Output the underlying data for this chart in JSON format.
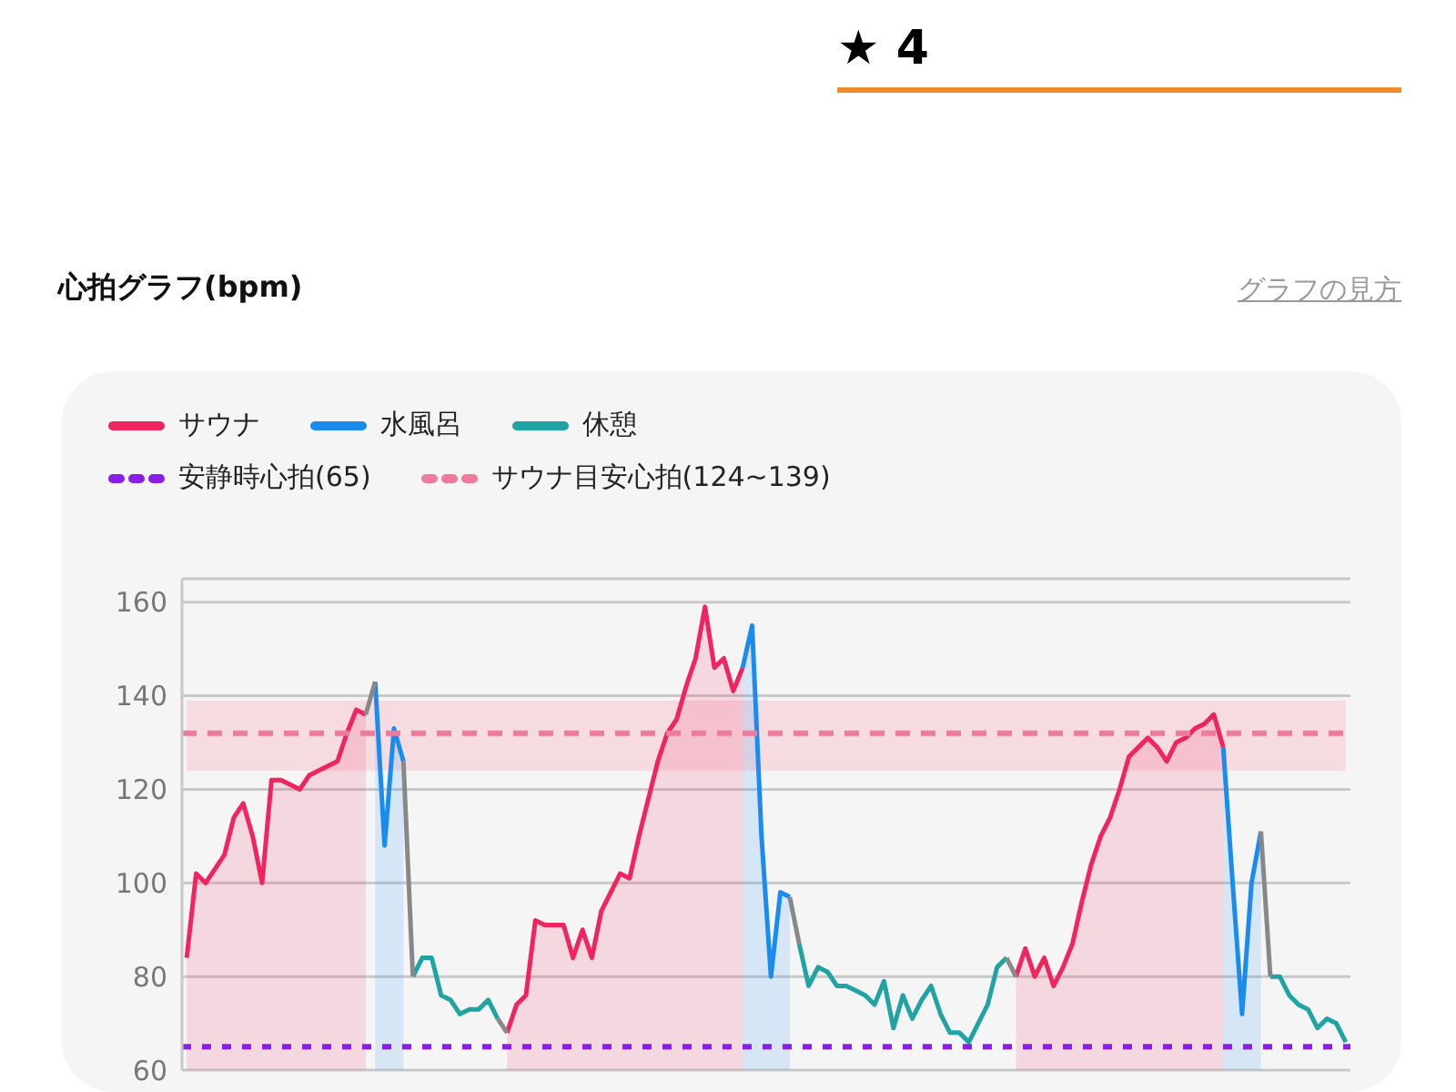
{
  "chart_data": {
    "type": "line",
    "title": "心拍グラフ(bpm)",
    "annotations": [
      "★ 4",
      "グラフの見方"
    ],
    "legend": "top left",
    "grid": "y",
    "ylim": [
      60,
      165
    ],
    "yticks": [
      60,
      80,
      100,
      120,
      140,
      160
    ],
    "categories": [
      null,
      null,
      null,
      null,
      null,
      null,
      null,
      null,
      null,
      null,
      null,
      null,
      null,
      null,
      null,
      null,
      null,
      null,
      null,
      null,
      null,
      null,
      null,
      null,
      null,
      null,
      null,
      null,
      null,
      null,
      null,
      null,
      null,
      null,
      null,
      null,
      null,
      null,
      null,
      null,
      null,
      null,
      null,
      null,
      null,
      null,
      null,
      null,
      null,
      null,
      null,
      null,
      null,
      null,
      null,
      null,
      null,
      null,
      null,
      null,
      null,
      null,
      null,
      null,
      null,
      null,
      null,
      null,
      null,
      null,
      null,
      null,
      null,
      null,
      null,
      null,
      null,
      null,
      null,
      null,
      null,
      null,
      null,
      null,
      null,
      null,
      null,
      null,
      null,
      null,
      null,
      null,
      null,
      null,
      null,
      null,
      null,
      null,
      null,
      null,
      null,
      null,
      null,
      null,
      null,
      null,
      null,
      null,
      null,
      null,
      null,
      null,
      null,
      null,
      null,
      null,
      null,
      null,
      null,
      null,
      null,
      null,
      null,
      null
    ],
    "series": [
      {
        "name": "サウナ",
        "type": "area",
        "color": "#f0245e",
        "values": [
          84,
          102,
          100,
          103,
          106,
          114,
          117,
          110,
          100,
          122,
          122,
          121,
          120,
          123,
          124,
          125,
          126,
          132,
          137,
          136,
          null,
          null,
          null,
          null,
          null,
          null,
          null,
          null,
          null,
          null,
          null,
          null,
          null,
          null,
          68,
          74,
          76,
          92,
          91,
          91,
          91,
          84,
          90,
          84,
          94,
          98,
          102,
          101,
          110,
          118,
          126,
          132,
          135,
          142,
          148,
          159,
          146,
          148,
          141,
          146,
          null,
          null,
          null,
          null,
          null,
          null,
          null,
          null,
          null,
          null,
          null,
          null,
          null,
          null,
          null,
          null,
          null,
          null,
          null,
          null,
          null,
          null,
          null,
          null,
          null,
          null,
          null,
          null,
          80,
          86,
          80,
          84,
          78,
          82,
          87,
          96,
          104,
          110,
          114,
          120,
          127,
          129,
          131,
          129,
          126,
          130,
          131,
          133,
          134,
          136,
          129,
          null,
          null,
          null,
          null,
          null,
          null,
          null,
          null,
          null,
          null,
          null,
          null,
          null
        ]
      },
      {
        "name": "水風呂",
        "type": "area",
        "color": "#1a8cf0",
        "values": [
          null,
          null,
          null,
          null,
          null,
          null,
          null,
          null,
          null,
          null,
          null,
          null,
          null,
          null,
          null,
          null,
          null,
          null,
          null,
          null,
          143,
          108,
          133,
          126,
          null,
          null,
          null,
          null,
          null,
          null,
          null,
          null,
          null,
          null,
          null,
          null,
          null,
          null,
          null,
          null,
          null,
          null,
          null,
          null,
          null,
          null,
          null,
          null,
          null,
          null,
          null,
          null,
          null,
          null,
          null,
          null,
          null,
          null,
          null,
          146,
          155,
          110,
          80,
          98,
          97,
          null,
          null,
          null,
          null,
          null,
          null,
          null,
          null,
          null,
          null,
          null,
          null,
          null,
          null,
          null,
          null,
          null,
          null,
          null,
          null,
          null,
          null,
          null,
          null,
          null,
          null,
          null,
          null,
          null,
          null,
          null,
          null,
          null,
          null,
          null,
          null,
          null,
          null,
          null,
          null,
          null,
          null,
          null,
          null,
          null,
          129,
          100,
          72,
          100,
          111,
          null,
          null,
          null,
          null,
          null,
          null,
          null,
          null,
          null
        ]
      },
      {
        "name": "休憩",
        "type": "line",
        "color": "#1fa3a3",
        "values": [
          null,
          null,
          null,
          null,
          null,
          null,
          null,
          null,
          null,
          null,
          null,
          null,
          null,
          null,
          null,
          null,
          null,
          null,
          null,
          null,
          null,
          null,
          null,
          null,
          80,
          84,
          84,
          76,
          75,
          72,
          73,
          73,
          75,
          71,
          null,
          null,
          null,
          null,
          null,
          null,
          null,
          null,
          null,
          null,
          null,
          null,
          null,
          null,
          null,
          null,
          null,
          null,
          null,
          null,
          null,
          null,
          null,
          null,
          null,
          null,
          null,
          null,
          null,
          null,
          null,
          87,
          78,
          82,
          81,
          78,
          78,
          77,
          76,
          74,
          79,
          69,
          76,
          71,
          75,
          78,
          72,
          68,
          68,
          66,
          70,
          74,
          82,
          84,
          null,
          null,
          null,
          null,
          null,
          null,
          null,
          null,
          null,
          null,
          null,
          null,
          null,
          null,
          null,
          null,
          null,
          null,
          null,
          null,
          null,
          null,
          null,
          null,
          null,
          null,
          null,
          80,
          80,
          76,
          74,
          73,
          69,
          71,
          70,
          66
        ]
      },
      {
        "type": "line",
        "color": "#888888",
        "values": [
          null,
          null,
          null,
          null,
          null,
          null,
          null,
          null,
          null,
          null,
          null,
          null,
          null,
          null,
          null,
          null,
          null,
          null,
          null,
          136,
          143,
          null,
          null,
          126,
          80,
          null,
          null,
          null,
          null,
          null,
          null,
          null,
          null,
          71,
          68,
          null,
          null,
          null,
          null,
          null,
          null,
          null,
          null,
          null,
          null,
          null,
          null,
          null,
          null,
          null,
          null,
          null,
          null,
          null,
          null,
          null,
          null,
          null,
          null,
          null,
          null,
          null,
          null,
          null,
          97,
          87,
          null,
          null,
          null,
          null,
          null,
          null,
          null,
          null,
          null,
          null,
          null,
          null,
          null,
          null,
          null,
          null,
          null,
          null,
          null,
          null,
          null,
          84,
          80,
          null,
          null,
          null,
          null,
          null,
          null,
          null,
          null,
          null,
          null,
          null,
          null,
          null,
          null,
          null,
          null,
          null,
          null,
          null,
          null,
          null,
          null,
          null,
          null,
          null,
          111,
          80,
          null,
          null,
          null,
          null,
          null,
          null,
          null,
          null
        ]
      }
    ],
    "ref_lines": [
      {
        "axis": "y",
        "value": 65,
        "label": "安静時心拍(65)",
        "color": "#8a1ee8",
        "line_style": "dotted"
      },
      {
        "axis": "y",
        "value": 132,
        "label": "サウナ目安心拍(124~139)",
        "color": "#f07a9a",
        "line_style": "dashed"
      }
    ],
    "bands": [
      {
        "axis": "y",
        "from": 124,
        "to": 139,
        "color": "#f6c9d3"
      }
    ]
  }
}
